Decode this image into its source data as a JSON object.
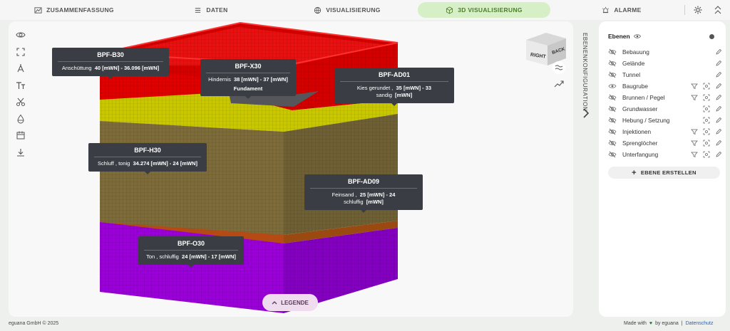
{
  "nav": {
    "tabs": [
      {
        "label": "ZUSAMMENFASSUNG",
        "icon": "chart-icon"
      },
      {
        "label": "DATEN",
        "icon": "list-icon"
      },
      {
        "label": "VISUALISIERUNG",
        "icon": "globe-icon"
      },
      {
        "label": "3D VISUALISIERUNG",
        "icon": "cube-3d-icon",
        "active": true
      },
      {
        "label": "ALARME",
        "icon": "alarm-icon"
      }
    ],
    "active_color": "#d7efc6"
  },
  "tooltips": [
    {
      "title": "BPF-B30",
      "label": "Anschüttung",
      "value": "40 [mWN] - 36.096 [mWN]"
    },
    {
      "title": "BPF-X30",
      "label": "Hindernis",
      "value": "38 [mWN] - 37 [mWN]",
      "extra": "Fundament"
    },
    {
      "title": "BPF-AD01",
      "label": "Kies gerundet ,",
      "value": "35 [mWN] - 33",
      "label2": "sandig",
      "value2": "[mWN]"
    },
    {
      "title": "BPF-H30",
      "label": "Schluff , tonig",
      "value": "34.274 [mWN] - 24 [mWN]"
    },
    {
      "title": "BPF-AD09",
      "label": "Feinsand ,",
      "value": "25 [mWN] - 24",
      "label2": "schluffig",
      "value2": "[mWN]"
    },
    {
      "title": "BPF-O30",
      "label": "Ton , schluffig",
      "value": "24 [mWN] - 17 [mWN]"
    }
  ],
  "viewcube": {
    "front": "RIGHT",
    "side": "BACK"
  },
  "legend_button": "LEGENDE",
  "layers_panel": {
    "vertical_tab": "EBENENKONFIGURATION",
    "title": "Ebenen",
    "layers": [
      {
        "name": "Bebauung",
        "visible": false,
        "filter": false,
        "focus": false
      },
      {
        "name": "Gelände",
        "visible": false,
        "filter": false,
        "focus": false
      },
      {
        "name": "Tunnel",
        "visible": false,
        "filter": false,
        "focus": false
      },
      {
        "name": "Baugrube",
        "visible": true,
        "filter": true,
        "focus": true
      },
      {
        "name": "Brunnen / Pegel",
        "visible": false,
        "filter": true,
        "focus": true
      },
      {
        "name": "Grundwasser",
        "visible": false,
        "filter": false,
        "focus": true
      },
      {
        "name": "Hebung / Setzung",
        "visible": false,
        "filter": false,
        "focus": true
      },
      {
        "name": "Injektionen",
        "visible": false,
        "filter": true,
        "focus": true
      },
      {
        "name": "Sprenglöcher",
        "visible": false,
        "filter": true,
        "focus": true
      },
      {
        "name": "Unterfangung",
        "visible": false,
        "filter": true,
        "focus": true
      }
    ],
    "add_label": "EBENE ERSTELLEN"
  },
  "footer": {
    "copyright": "eguana GmbH © 2025",
    "made_with": "Made with",
    "by": "by eguana",
    "sep": "|",
    "privacy": "Datenschutz"
  },
  "colors": {
    "soil_red": "#e60000",
    "soil_yellow": "#c8c800",
    "soil_olive": "#7a6a3c",
    "soil_purple": "#9400d3",
    "brand_green": "#2e6b3a"
  }
}
